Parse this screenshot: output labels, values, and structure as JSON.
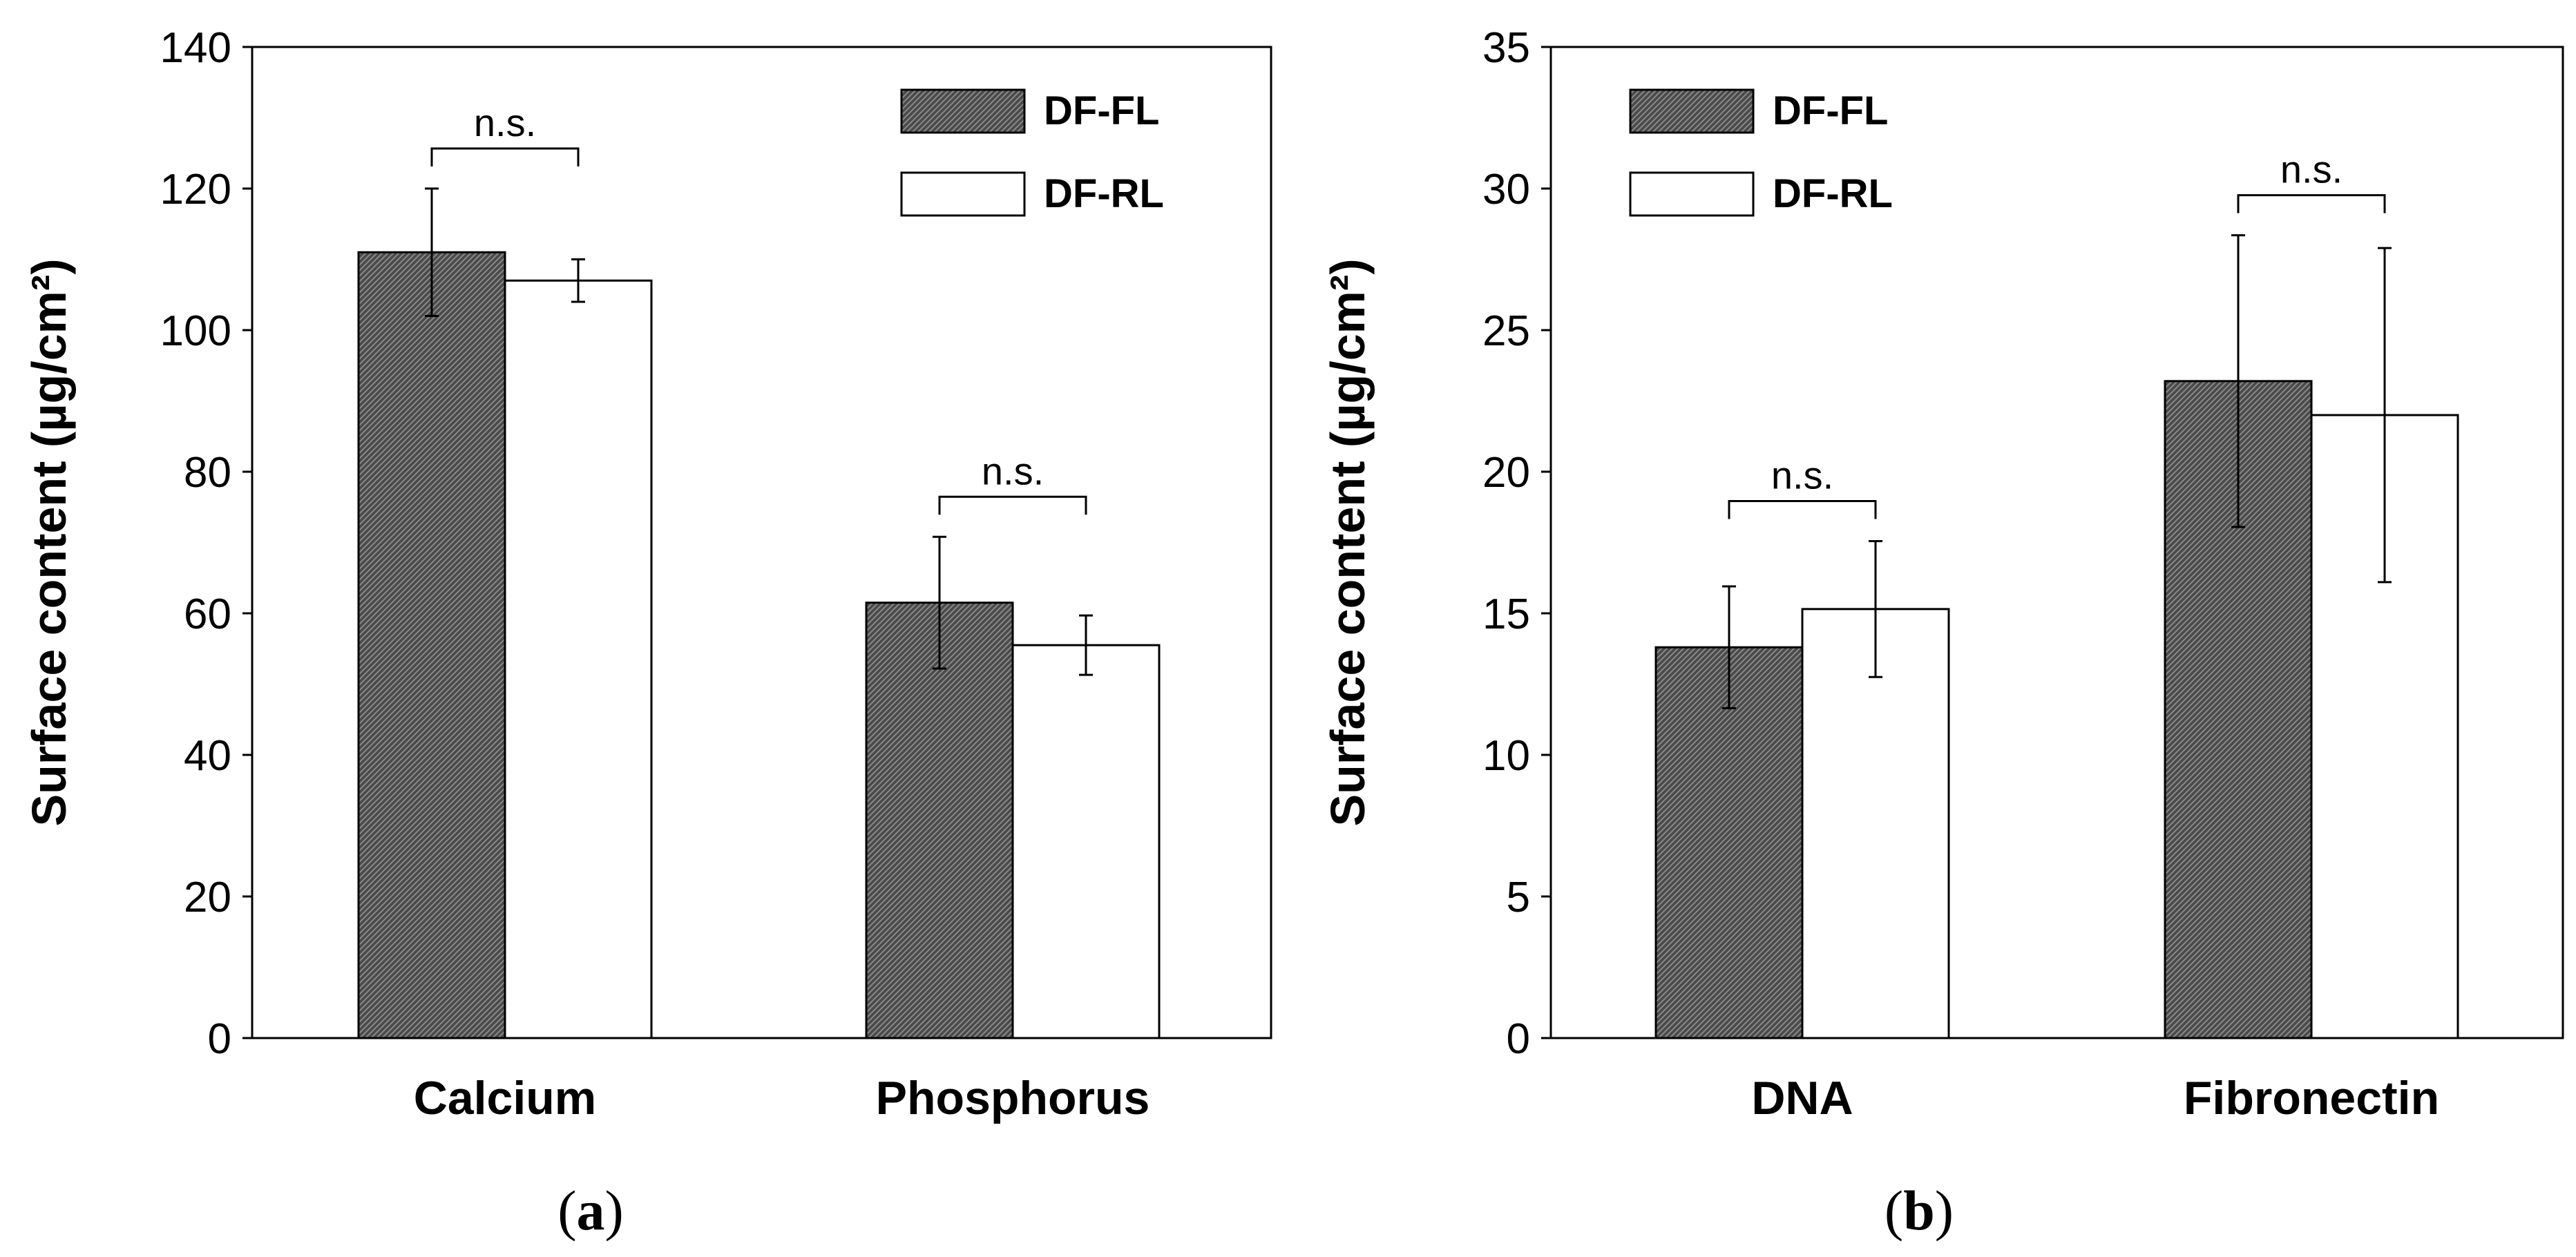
{
  "figure": {
    "panels": [
      "a",
      "b"
    ]
  },
  "colors": {
    "filled_bar": "#4a4a4a",
    "open_bar": "#ffffff",
    "axis": "#000000"
  },
  "chart_data": [
    {
      "type": "bar",
      "panel_label": "a",
      "title": "",
      "xlabel": "",
      "ylabel": "Surface content (µg/cm²)",
      "ylim": [
        0,
        140
      ],
      "yticks": [
        0,
        20,
        40,
        60,
        80,
        100,
        120,
        140
      ],
      "categories": [
        "Calcium",
        "Phosphorus"
      ],
      "series": [
        {
          "name": "DF-FL",
          "style": "hatched",
          "values": [
            111,
            61.5
          ],
          "errors": [
            9,
            9.3
          ]
        },
        {
          "name": "DF-RL",
          "style": "open",
          "values": [
            107,
            55.5
          ],
          "errors": [
            3,
            4.2
          ]
        }
      ],
      "significance": [
        "n.s.",
        "n.s."
      ],
      "legend": {
        "position": "top-right",
        "entries": [
          "DF-FL",
          "DF-RL"
        ]
      },
      "grid": false
    },
    {
      "type": "bar",
      "panel_label": "b",
      "title": "",
      "xlabel": "",
      "ylabel": "Surface content (µg/cm²)",
      "ylim": [
        0,
        35
      ],
      "yticks": [
        0,
        5,
        10,
        15,
        20,
        25,
        30,
        35
      ],
      "categories": [
        "DNA",
        "Fibronectin"
      ],
      "series": [
        {
          "name": "DF-FL",
          "style": "hatched",
          "values": [
            13.8,
            23.2
          ],
          "errors": [
            2.15,
            5.15
          ]
        },
        {
          "name": "DF-RL",
          "style": "open",
          "values": [
            15.15,
            22
          ],
          "errors": [
            2.4,
            5.9
          ]
        }
      ],
      "significance": [
        "n.s.",
        "n.s."
      ],
      "legend": {
        "position": "top-left",
        "entries": [
          "DF-FL",
          "DF-RL"
        ]
      },
      "grid": false
    }
  ]
}
